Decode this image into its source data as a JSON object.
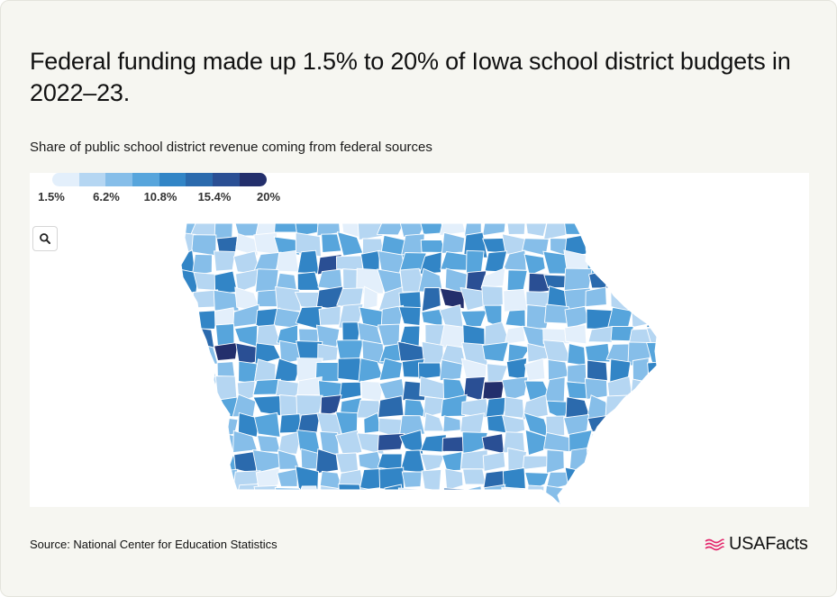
{
  "title": "Federal funding made up 1.5% to 20% of Iowa school district budgets in 2022–23.",
  "subtitle": "Share of public school district revenue coming from federal sources",
  "legend": {
    "ticks": [
      "1.5%",
      "6.2%",
      "10.8%",
      "15.4%",
      "20%"
    ],
    "min": 1.5,
    "max": 20,
    "colors": [
      "#e3effb",
      "#b5d6f2",
      "#86bee9",
      "#57a5dc",
      "#3285c6",
      "#2b6aad",
      "#2a4f94",
      "#232f6c"
    ]
  },
  "map": {
    "region": "Iowa",
    "zoom_icon": "search-icon",
    "district_fill_levels": "eight color classes from 1.5% to 20%"
  },
  "source": "Source: National Center for Education Statistics",
  "brand": {
    "name": "USAFacts",
    "icon": "flag-logo-icon",
    "accent": "#e3256b"
  }
}
